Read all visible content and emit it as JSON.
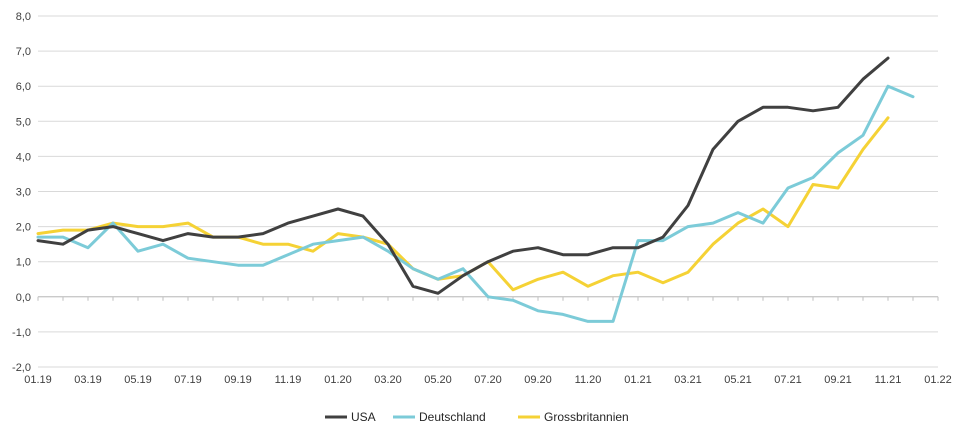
{
  "chart_data": {
    "type": "line",
    "title": "",
    "xlabel": "",
    "ylabel": "",
    "ylim": [
      -2.0,
      8.0
    ],
    "y_ticks": [
      "-2,0",
      "-1,0",
      "0,0",
      "1,0",
      "2,0",
      "3,0",
      "4,0",
      "5,0",
      "6,0",
      "7,0",
      "8,0"
    ],
    "x_tick_labels": [
      "01.19",
      "03.19",
      "05.19",
      "07.19",
      "09.19",
      "11.19",
      "01.20",
      "03.20",
      "05.20",
      "07.20",
      "09.20",
      "11.20",
      "01.21",
      "03.21",
      "05.21",
      "07.21",
      "09.21",
      "11.21",
      "01.22"
    ],
    "x_months": [
      "01.19",
      "02.19",
      "03.19",
      "04.19",
      "05.19",
      "06.19",
      "07.19",
      "08.19",
      "09.19",
      "10.19",
      "11.19",
      "12.19",
      "01.20",
      "02.20",
      "03.20",
      "04.20",
      "05.20",
      "06.20",
      "07.20",
      "08.20",
      "09.20",
      "10.20",
      "11.20",
      "12.20",
      "01.21",
      "02.21",
      "03.21",
      "04.21",
      "05.21",
      "06.21",
      "07.21",
      "08.21",
      "09.21",
      "10.21",
      "11.21",
      "12.21",
      "01.22"
    ],
    "grid": "horizontal",
    "legend_position": "bottom",
    "series": [
      {
        "name": "USA",
        "color": "#404040",
        "values": [
          1.6,
          1.5,
          1.9,
          2.0,
          1.8,
          1.6,
          1.8,
          1.7,
          1.7,
          1.8,
          2.1,
          2.3,
          2.5,
          2.3,
          1.5,
          0.3,
          0.1,
          0.6,
          1.0,
          1.3,
          1.4,
          1.2,
          1.2,
          1.4,
          1.4,
          1.7,
          2.6,
          4.2,
          5.0,
          5.4,
          5.4,
          5.3,
          5.4,
          6.2,
          6.8
        ]
      },
      {
        "name": "Deutschland",
        "color": "#7ccbd8",
        "values": [
          1.7,
          1.7,
          1.4,
          2.1,
          1.3,
          1.5,
          1.1,
          1.0,
          0.9,
          0.9,
          1.2,
          1.5,
          1.6,
          1.7,
          1.3,
          0.8,
          0.5,
          0.8,
          0.0,
          -0.1,
          -0.4,
          -0.5,
          -0.7,
          -0.7,
          1.6,
          1.6,
          2.0,
          2.1,
          2.4,
          2.1,
          3.1,
          3.4,
          4.1,
          4.6,
          6.0,
          5.7
        ]
      },
      {
        "name": "Grossbritannien",
        "color": "#f5d235",
        "values": [
          1.8,
          1.9,
          1.9,
          2.1,
          2.0,
          2.0,
          2.1,
          1.7,
          1.7,
          1.5,
          1.5,
          1.3,
          1.8,
          1.7,
          1.5,
          0.8,
          0.5,
          0.6,
          1.0,
          0.2,
          0.5,
          0.7,
          0.3,
          0.6,
          0.7,
          0.4,
          0.7,
          1.5,
          2.1,
          2.5,
          2.0,
          3.2,
          3.1,
          4.2,
          5.1
        ]
      }
    ]
  }
}
